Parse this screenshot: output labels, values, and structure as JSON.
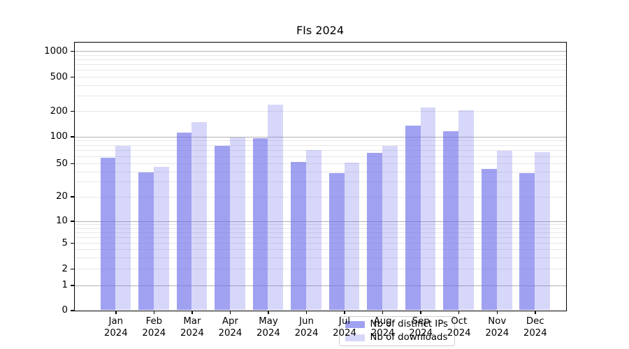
{
  "chart_data": {
    "type": "bar",
    "title": "FIs 2024",
    "categories": [
      "Jan",
      "Feb",
      "Mar",
      "Apr",
      "May",
      "Jun",
      "Jul",
      "Aug",
      "Sep",
      "Oct",
      "Nov",
      "Dec"
    ],
    "x_year_label": "2024",
    "series": [
      {
        "name": "Nb of distinct IPs",
        "color": "rgba(110,110,235,0.65)",
        "values": [
          58,
          39,
          112,
          78,
          95,
          52,
          38,
          66,
          135,
          116,
          43,
          38
        ]
      },
      {
        "name": "Nb of downloads",
        "color": "rgba(110,110,235,0.28)",
        "values": [
          78,
          45,
          148,
          97,
          235,
          70,
          51,
          78,
          220,
          203,
          69,
          67
        ]
      }
    ],
    "y_ticks": [
      0,
      1,
      2,
      5,
      10,
      20,
      50,
      100,
      200,
      500,
      1000
    ],
    "y_scale": "symlog",
    "ylim": [
      0,
      1000
    ],
    "grid": true,
    "legend_position": "lower center",
    "colors": {
      "bar_dark": "rgba(110,110,235,0.65)",
      "bar_light": "rgba(110,110,235,0.28)",
      "grid_major": "#b0b0b0",
      "grid_minor": "#e7e7e7"
    }
  }
}
